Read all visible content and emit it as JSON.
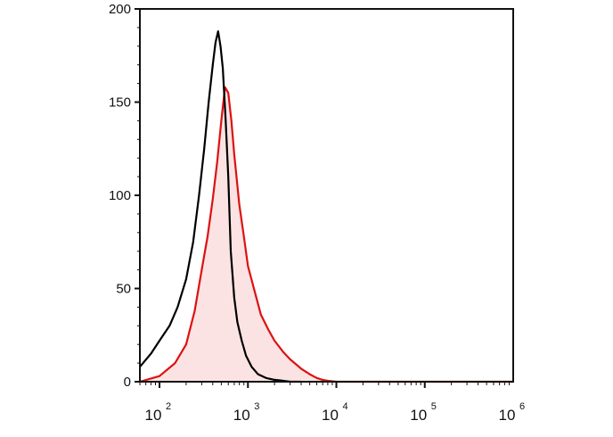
{
  "chart_data": {
    "type": "line",
    "title": "",
    "xlabel": "",
    "ylabel": "",
    "x_scale": "log",
    "xlim": [
      60,
      1000000
    ],
    "ylim": [
      0,
      200
    ],
    "grid": false,
    "legend": "none",
    "y_ticks": [
      0,
      50,
      100,
      150,
      200
    ],
    "y_tick_labels": [
      "0",
      "50",
      "100",
      "150",
      "200"
    ],
    "x_ticks": [
      {
        "value": 100,
        "base": "10",
        "exp": "2"
      },
      {
        "value": 1000,
        "base": "10",
        "exp": "3"
      },
      {
        "value": 10000,
        "base": "10",
        "exp": "4"
      },
      {
        "value": 100000,
        "base": "10",
        "exp": "5"
      },
      {
        "value": 1000000,
        "base": "10",
        "exp": "6"
      }
    ],
    "series": [
      {
        "color": "#000000",
        "fill": "none",
        "x": [
          60,
          80,
          100,
          130,
          160,
          200,
          240,
          280,
          320,
          360,
          400,
          430,
          460,
          490,
          520,
          560,
          600,
          640,
          700,
          760,
          850,
          950,
          1100,
          1300,
          1600,
          2000,
          2500,
          3000,
          4000
        ],
        "y": [
          8,
          15,
          22,
          30,
          40,
          55,
          75,
          100,
          125,
          150,
          170,
          182,
          188,
          180,
          168,
          140,
          110,
          70,
          45,
          32,
          22,
          14,
          8,
          4,
          2,
          1,
          0.5,
          0,
          0
        ]
      },
      {
        "color": "#dd1111",
        "fill": "#fbe3e3",
        "x": [
          60,
          100,
          150,
          200,
          250,
          300,
          350,
          400,
          450,
          500,
          550,
          600,
          650,
          700,
          800,
          900,
          1000,
          1200,
          1400,
          1700,
          2000,
          2500,
          3000,
          4000,
          5000,
          6000,
          7000,
          8000,
          10000,
          100000,
          1000000
        ],
        "y": [
          0,
          3,
          10,
          20,
          38,
          60,
          78,
          98,
          118,
          140,
          158,
          155,
          140,
          122,
          95,
          78,
          62,
          48,
          36,
          28,
          22,
          16,
          12,
          7,
          4,
          2,
          1,
          0.5,
          0,
          0,
          0
        ]
      }
    ]
  }
}
